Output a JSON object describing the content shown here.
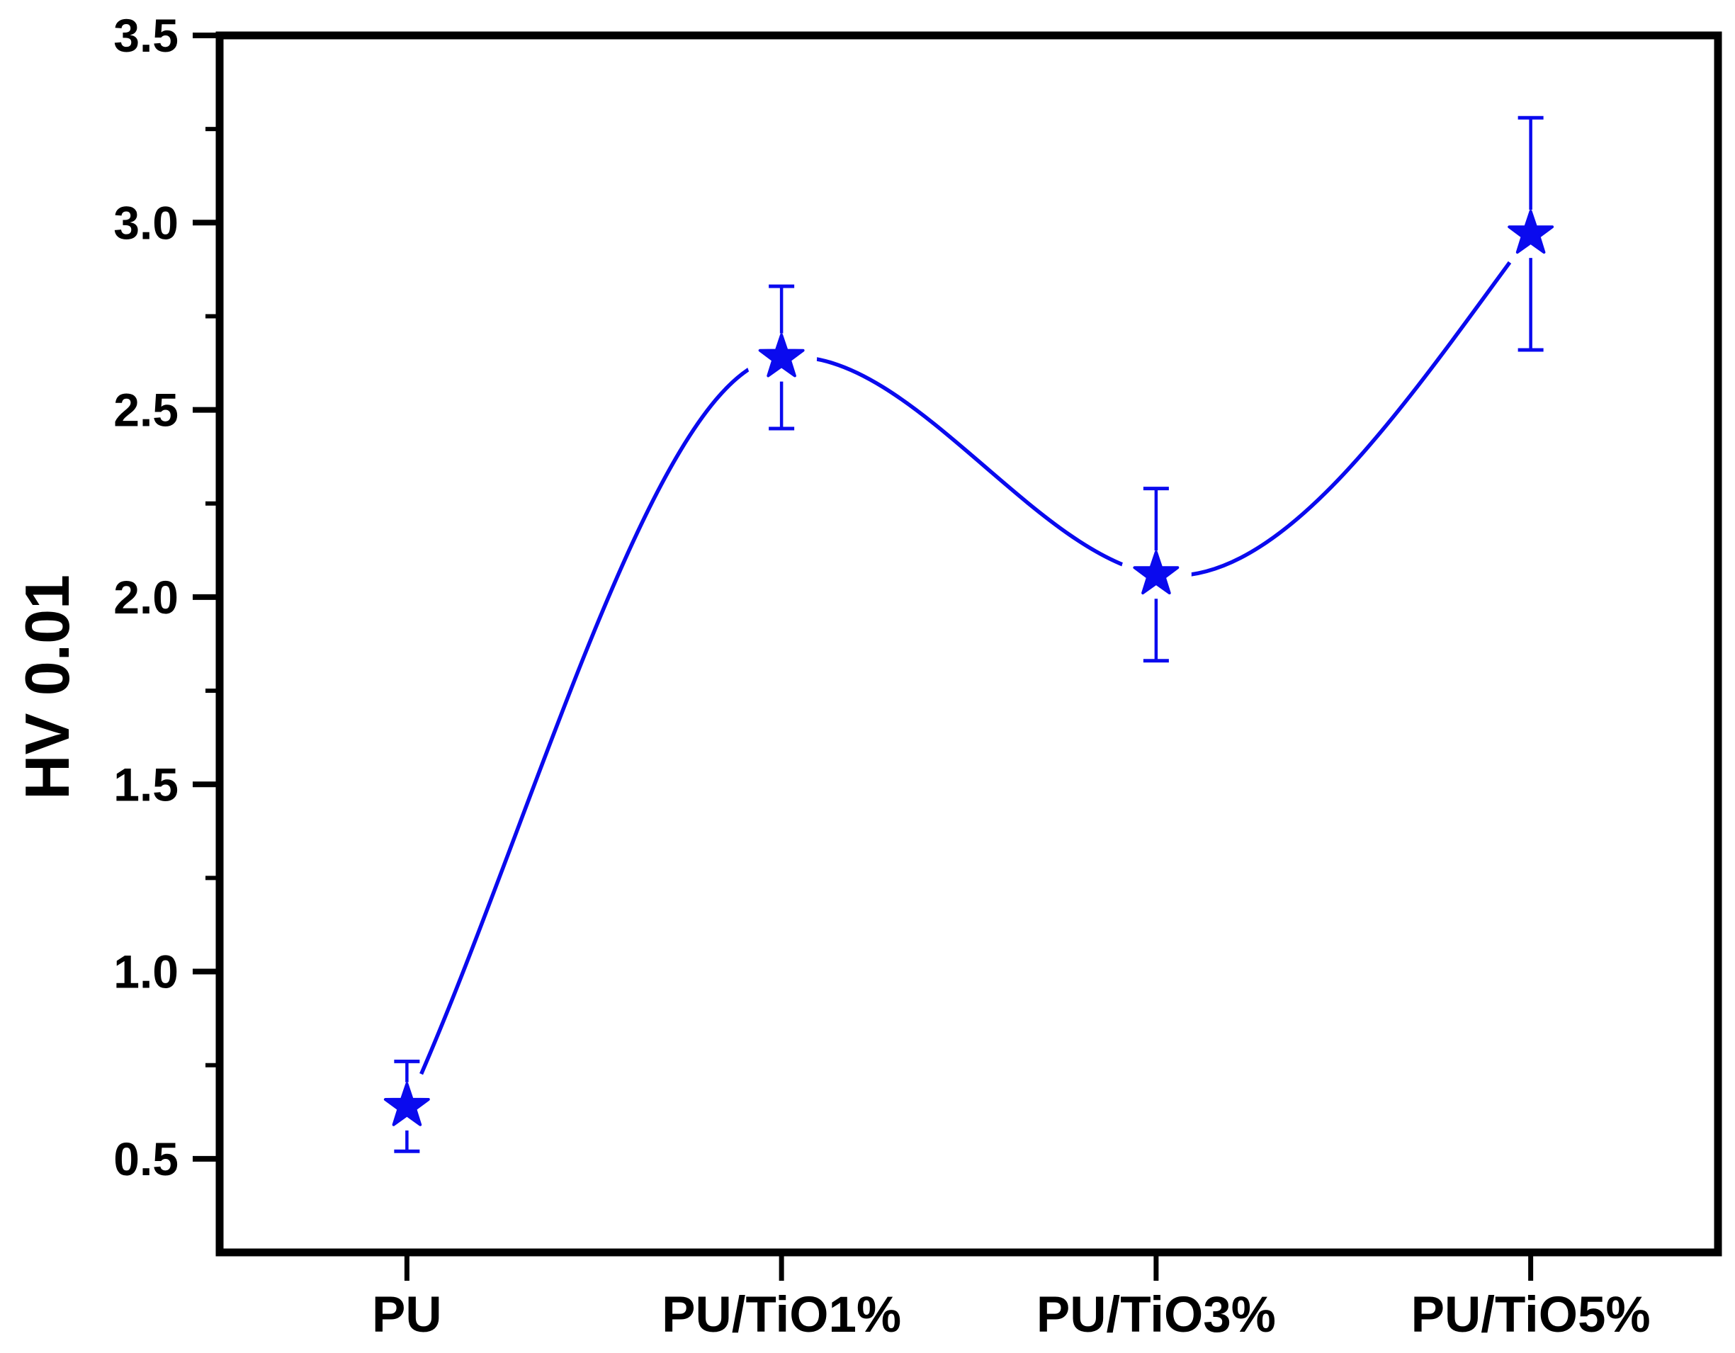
{
  "figure": {
    "background_color": "#ffffff",
    "plot_frame": "full box, ticks outward, no grid"
  },
  "chart_data": {
    "type": "line",
    "title": "",
    "xlabel": "",
    "ylabel": "HV 0.01",
    "categories": [
      "PU",
      "PU/TiO1%",
      "PU/TiO3%",
      "PU/TiO5%"
    ],
    "series": [
      {
        "marker": "star",
        "color": "#0a0aee",
        "values": [
          0.64,
          2.64,
          2.06,
          2.97
        ],
        "error_bars": [
          0.12,
          0.19,
          0.23,
          0.31
        ]
      }
    ],
    "ylim": [
      0.25,
      3.5
    ],
    "yticks": [
      "0.5",
      "1.0",
      "1.5",
      "2.0",
      "2.5",
      "3.0",
      "3.5"
    ],
    "minor_ytick_step": 0.25,
    "grid": false,
    "legend": false,
    "axis_color": "#000000",
    "line_style": "smooth spline through points with gaps at markers"
  }
}
